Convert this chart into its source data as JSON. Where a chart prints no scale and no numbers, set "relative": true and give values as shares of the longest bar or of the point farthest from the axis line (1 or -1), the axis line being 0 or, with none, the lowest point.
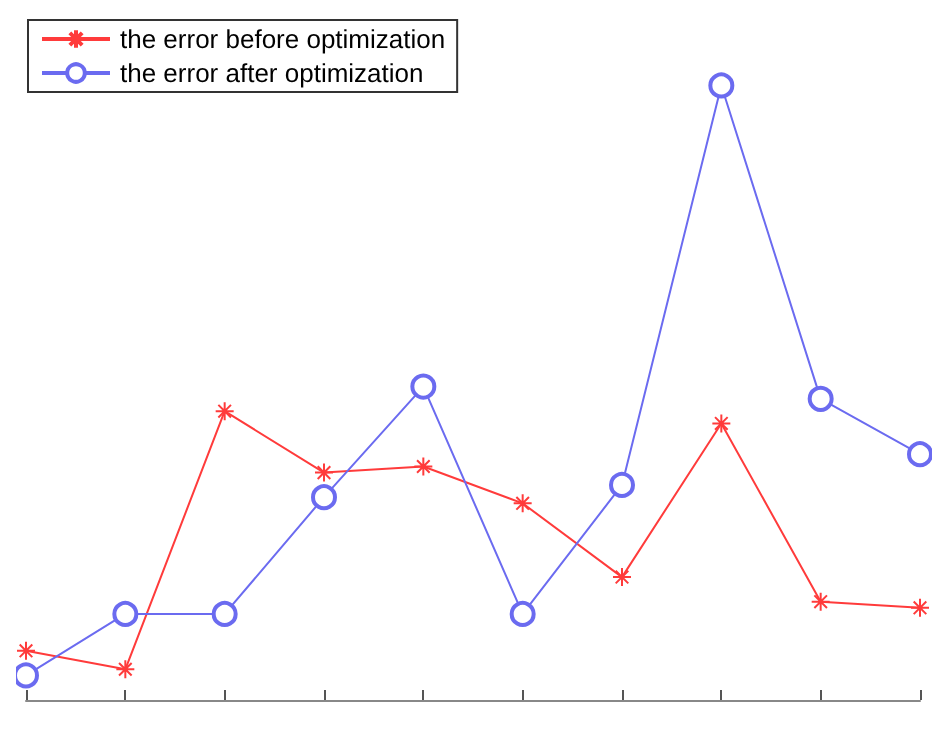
{
  "chart_data": {
    "type": "line",
    "relative": true,
    "categories": [
      null,
      null,
      null,
      null,
      null,
      null,
      null,
      null,
      null,
      null
    ],
    "series": [
      {
        "name": "the error before optimization",
        "color": "#ff3b3b",
        "marker": "cross",
        "values": [
          0.08,
          0.05,
          0.47,
          0.37,
          0.38,
          0.32,
          0.2,
          0.45,
          0.16,
          0.15
        ]
      },
      {
        "name": "the error after optimization",
        "color": "#6b6bf0",
        "marker": "circle",
        "values": [
          0.04,
          0.14,
          0.14,
          0.33,
          0.51,
          0.14,
          0.35,
          1,
          0.49,
          0.4
        ]
      }
    ],
    "legend": "top left",
    "grid": false
  }
}
